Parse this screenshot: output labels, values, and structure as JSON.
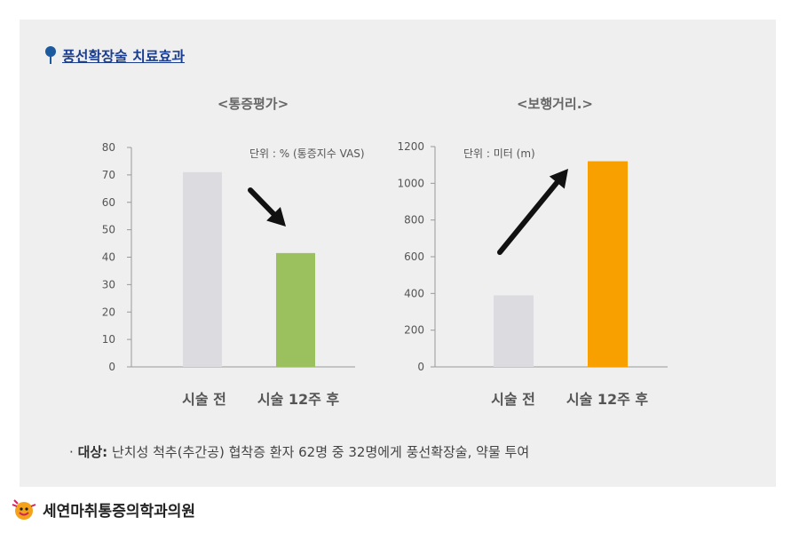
{
  "heading": "풍선확장술 치료효과",
  "footnote": {
    "label": "대상:",
    "text": "난치성 척추(추간공) 협착증 환자 62명 중 32명에게 풍선확장술, 약물 투여"
  },
  "logo_text": "세연마취통증의학과의원",
  "colors": {
    "before": "#dcdbe0",
    "after_pain": "#9bc05e",
    "after_walk": "#f7a000",
    "arrow": "#111111",
    "heading": "#1b3e8f"
  },
  "chart_data": [
    {
      "type": "bar",
      "title": "<통증평가>",
      "unit_text": "단위 : % (통증지수 VAS)",
      "categories": [
        "시술 전",
        "시술 12주 후"
      ],
      "values": [
        71,
        41.5
      ],
      "ylim": [
        0,
        80
      ],
      "yticks": [
        0,
        10,
        20,
        30,
        40,
        50,
        60,
        70,
        80
      ],
      "trend": "down"
    },
    {
      "type": "bar",
      "title": "<보행거리.>",
      "unit_text": "단위 : 미터 (m)",
      "categories": [
        "시술 전",
        "시술 12주 후"
      ],
      "values": [
        390,
        1120
      ],
      "ylim": [
        0,
        1200
      ],
      "yticks": [
        0,
        200,
        400,
        600,
        800,
        1000,
        1200
      ],
      "trend": "up"
    }
  ]
}
